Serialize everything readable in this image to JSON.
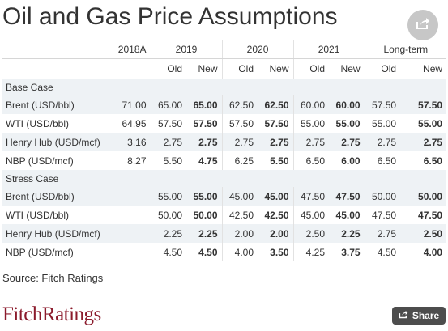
{
  "title": "Oil and Gas Price Assumptions",
  "columns": {
    "years": [
      "2018A",
      "2019",
      "2020",
      "2021",
      "Long-term"
    ],
    "old": "Old",
    "new": "New"
  },
  "sections": [
    {
      "name": "Base Case",
      "rows": [
        {
          "label": "Brent (USD/bbl)",
          "values": [
            "71.00",
            "65.00",
            "65.00",
            "62.50",
            "62.50",
            "60.00",
            "60.00",
            "57.50",
            "57.50"
          ]
        },
        {
          "label": "WTI (USD/bbl)",
          "values": [
            "64.95",
            "57.50",
            "57.50",
            "57.50",
            "57.50",
            "55.00",
            "55.00",
            "55.00",
            "55.00"
          ]
        },
        {
          "label": "Henry Hub (USD/mcf)",
          "values": [
            "3.16",
            "2.75",
            "2.75",
            "2.75",
            "2.75",
            "2.75",
            "2.75",
            "2.75",
            "2.75"
          ]
        },
        {
          "label": "NBP (USD/mcf)",
          "values": [
            "8.27",
            "5.50",
            "4.75",
            "6.25",
            "5.50",
            "6.50",
            "6.00",
            "6.50",
            "6.50"
          ]
        }
      ]
    },
    {
      "name": "Stress Case",
      "rows": [
        {
          "label": "Brent (USD/bbl)",
          "values": [
            "",
            "55.00",
            "55.00",
            "45.00",
            "45.00",
            "47.50",
            "47.50",
            "50.00",
            "50.00"
          ]
        },
        {
          "label": "WTI (USD/bbl)",
          "values": [
            "",
            "50.00",
            "50.00",
            "42.50",
            "42.50",
            "45.00",
            "45.00",
            "47.50",
            "47.50"
          ]
        },
        {
          "label": "Henry Hub (USD/mcf)",
          "values": [
            "",
            "2.25",
            "2.25",
            "2.00",
            "2.00",
            "2.50",
            "2.25",
            "2.75",
            "2.50"
          ]
        },
        {
          "label": "NBP (USD/mcf)",
          "values": [
            "",
            "4.50",
            "4.50",
            "4.00",
            "3.50",
            "4.25",
            "3.75",
            "4.50",
            "4.00"
          ]
        }
      ]
    }
  ],
  "source": "Source: Fitch Ratings",
  "logo": "FitchRatings",
  "share_label": "Share",
  "icons": {
    "share_top": "share-arrow-icon",
    "share_button": "share-arrow-icon"
  },
  "colors": {
    "row_shade": "#eef2f5",
    "logo": "#8b1a2b",
    "share_button_bg": "#4d4d4d",
    "share_circle_bg": "#c7c7c7"
  }
}
